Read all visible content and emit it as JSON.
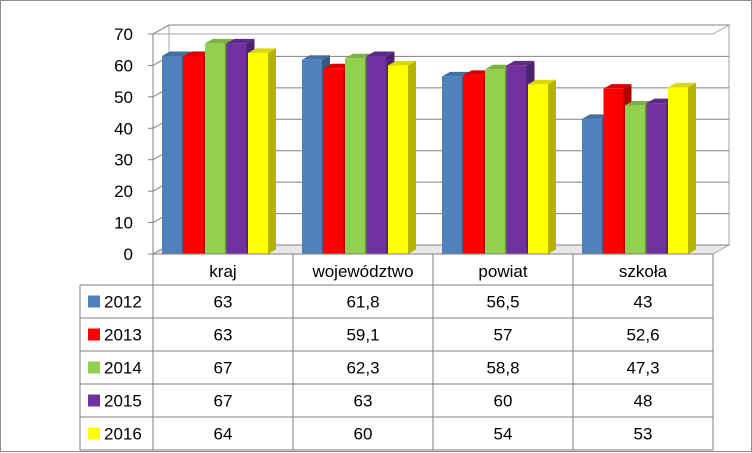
{
  "chart_data": {
    "type": "bar",
    "categories": [
      "kraj",
      "województwo",
      "powiat",
      "szkoła"
    ],
    "series": [
      {
        "name": "2012",
        "color": "#4F81BD",
        "values": [
          63,
          61.8,
          56.5,
          43
        ],
        "labels": [
          "63",
          "61,8",
          "56,5",
          "43"
        ]
      },
      {
        "name": "2013",
        "color": "#FF0000",
        "values": [
          63,
          59.1,
          57,
          52.6
        ],
        "labels": [
          "63",
          "59,1",
          "57",
          "52,6"
        ]
      },
      {
        "name": "2014",
        "color": "#92D050",
        "values": [
          67,
          62.3,
          58.8,
          47.3
        ],
        "labels": [
          "67",
          "62,3",
          "58,8",
          "47,3"
        ]
      },
      {
        "name": "2015",
        "color": "#7030A0",
        "values": [
          67,
          63,
          60,
          48
        ],
        "labels": [
          "67",
          "63",
          "60",
          "48"
        ]
      },
      {
        "name": "2016",
        "color": "#FFFF00",
        "values": [
          64,
          60,
          54,
          53
        ],
        "labels": [
          "64",
          "60",
          "54",
          "53"
        ]
      }
    ],
    "y_ticks": [
      "0",
      "10",
      "20",
      "30",
      "40",
      "50",
      "60",
      "70"
    ],
    "ylim": [
      0,
      70
    ],
    "grid": true,
    "legend": "data-table",
    "style": "3d-clustered-column"
  }
}
